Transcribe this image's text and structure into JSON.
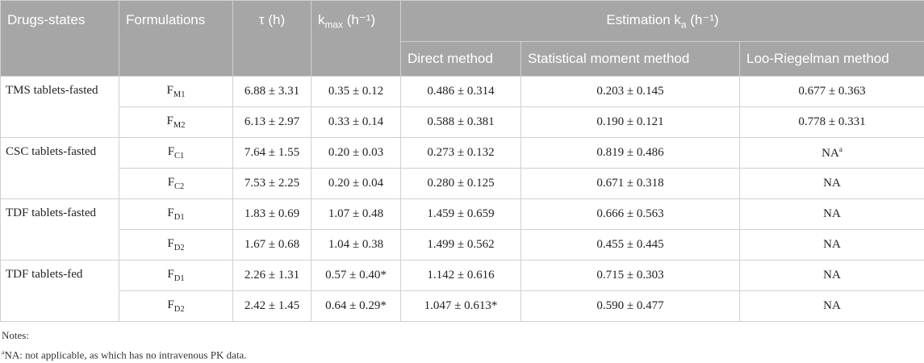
{
  "header": {
    "drugs_states": "Drugs-states",
    "formulations": "Formulations",
    "tau": "τ (h)",
    "kmax": {
      "main": "k",
      "sub": "max",
      "unit": " (h⁻¹)"
    },
    "estimation": {
      "main": "Estimation k",
      "sub": "a",
      "unit": " (h⁻¹)"
    },
    "methods": [
      "Direct method",
      "Statistical moment method",
      "Loo-Riegelman method"
    ]
  },
  "groups": [
    {
      "state": "TMS tablets-fasted",
      "rows": [
        {
          "formulation": {
            "base": "F",
            "sub": "M1"
          },
          "tau": "6.88 ± 3.31",
          "kmax": "0.35 ± 0.12",
          "direct": "0.486 ± 0.314",
          "moment": "0.203 ± 0.145",
          "loo": {
            "text": "0.677 ± 0.363"
          }
        },
        {
          "formulation": {
            "base": "F",
            "sub": "M2"
          },
          "tau": "6.13 ± 2.97",
          "kmax": "0.33 ± 0.14",
          "direct": "0.588 ± 0.381",
          "moment": "0.190 ± 0.121",
          "loo": {
            "text": "0.778 ± 0.331"
          }
        }
      ]
    },
    {
      "state": "CSC tablets-fasted",
      "rows": [
        {
          "formulation": {
            "base": "F",
            "sub": "C1"
          },
          "tau": "7.64 ± 1.55",
          "kmax": "0.20 ± 0.03",
          "direct": "0.273 ± 0.132",
          "moment": "0.819 ± 0.486",
          "loo": {
            "text": "NA",
            "sup": "a"
          }
        },
        {
          "formulation": {
            "base": "F",
            "sub": "C2"
          },
          "tau": "7.53 ± 2.25",
          "kmax": "0.20 ± 0.04",
          "direct": "0.280 ± 0.125",
          "moment": "0.671 ± 0.318",
          "loo": {
            "text": "NA"
          }
        }
      ]
    },
    {
      "state": "TDF tablets-fasted",
      "rows": [
        {
          "formulation": {
            "base": "F",
            "sub": "D1"
          },
          "tau": "1.83 ± 0.69",
          "kmax": "1.07 ± 0.48",
          "direct": "1.459 ± 0.659",
          "moment": "0.666 ± 0.563",
          "loo": {
            "text": "NA"
          }
        },
        {
          "formulation": {
            "base": "F",
            "sub": "D2"
          },
          "tau": "1.67 ± 0.68",
          "kmax": "1.04 ± 0.38",
          "direct": "1.499 ± 0.562",
          "moment": "0.455 ± 0.445",
          "loo": {
            "text": "NA"
          }
        }
      ]
    },
    {
      "state": "TDF tablets-fed",
      "rows": [
        {
          "formulation": {
            "base": "F",
            "sub": "D1"
          },
          "tau": "2.26 ± 1.31",
          "kmax": "0.57 ± 0.40*",
          "direct": "1.142 ± 0.616",
          "moment": "0.715 ± 0.303",
          "loo": {
            "text": "NA"
          }
        },
        {
          "formulation": {
            "base": "F",
            "sub": "D2"
          },
          "tau": "2.42 ± 1.45",
          "kmax": "0.64 ± 0.29*",
          "direct": "1.047 ± 0.613*",
          "moment": "0.590 ± 0.477",
          "loo": {
            "text": "NA"
          }
        }
      ]
    }
  ],
  "notes": {
    "label": "Notes:",
    "items": [
      {
        "sup": "a",
        "text": "NA: not applicable, as which has no intravenous PK data."
      }
    ]
  }
}
